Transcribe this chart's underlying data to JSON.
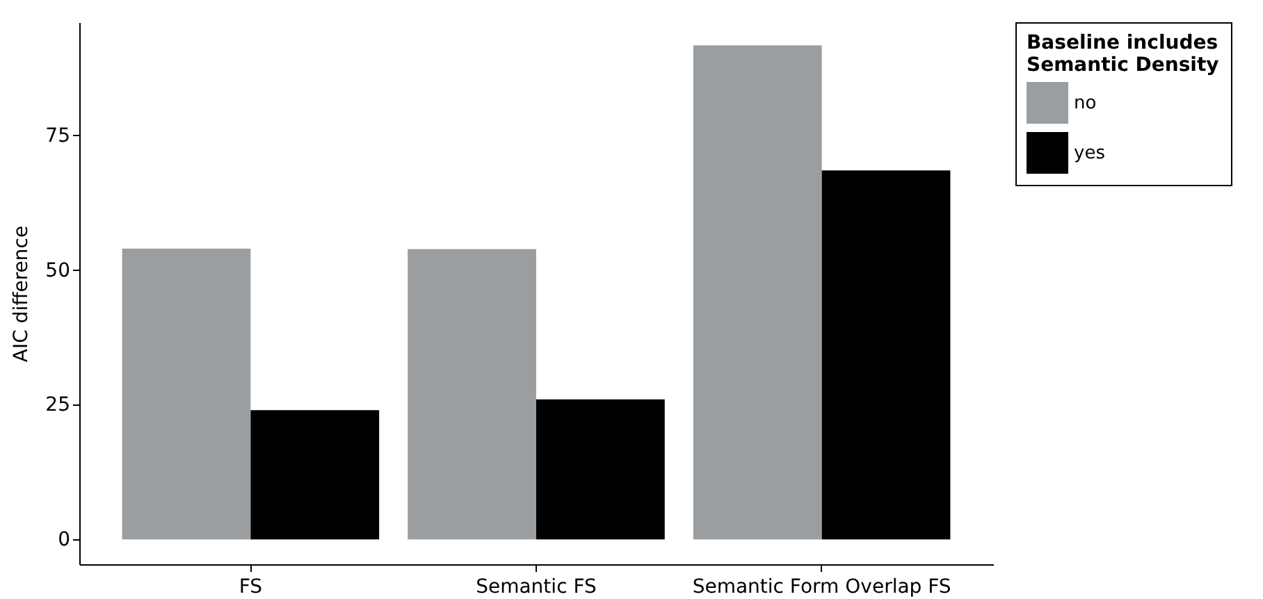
{
  "chart_data": {
    "type": "bar",
    "ylabel": "AIC difference",
    "legend_title": "Baseline includes\nSemantic Density",
    "categories": [
      "FS",
      "Semantic FS",
      "Semantic Form Overlap FS"
    ],
    "series": [
      {
        "name": "no",
        "color": "#9b9ea1",
        "values": [
          54,
          53.9,
          91.7
        ]
      },
      {
        "name": "yes",
        "color": "#000000",
        "values": [
          24,
          26,
          68.5
        ]
      }
    ],
    "ylim": [
      -4.6,
      96
    ],
    "yticks": [
      0,
      25,
      50,
      75
    ],
    "grid": false,
    "legend": "right"
  }
}
